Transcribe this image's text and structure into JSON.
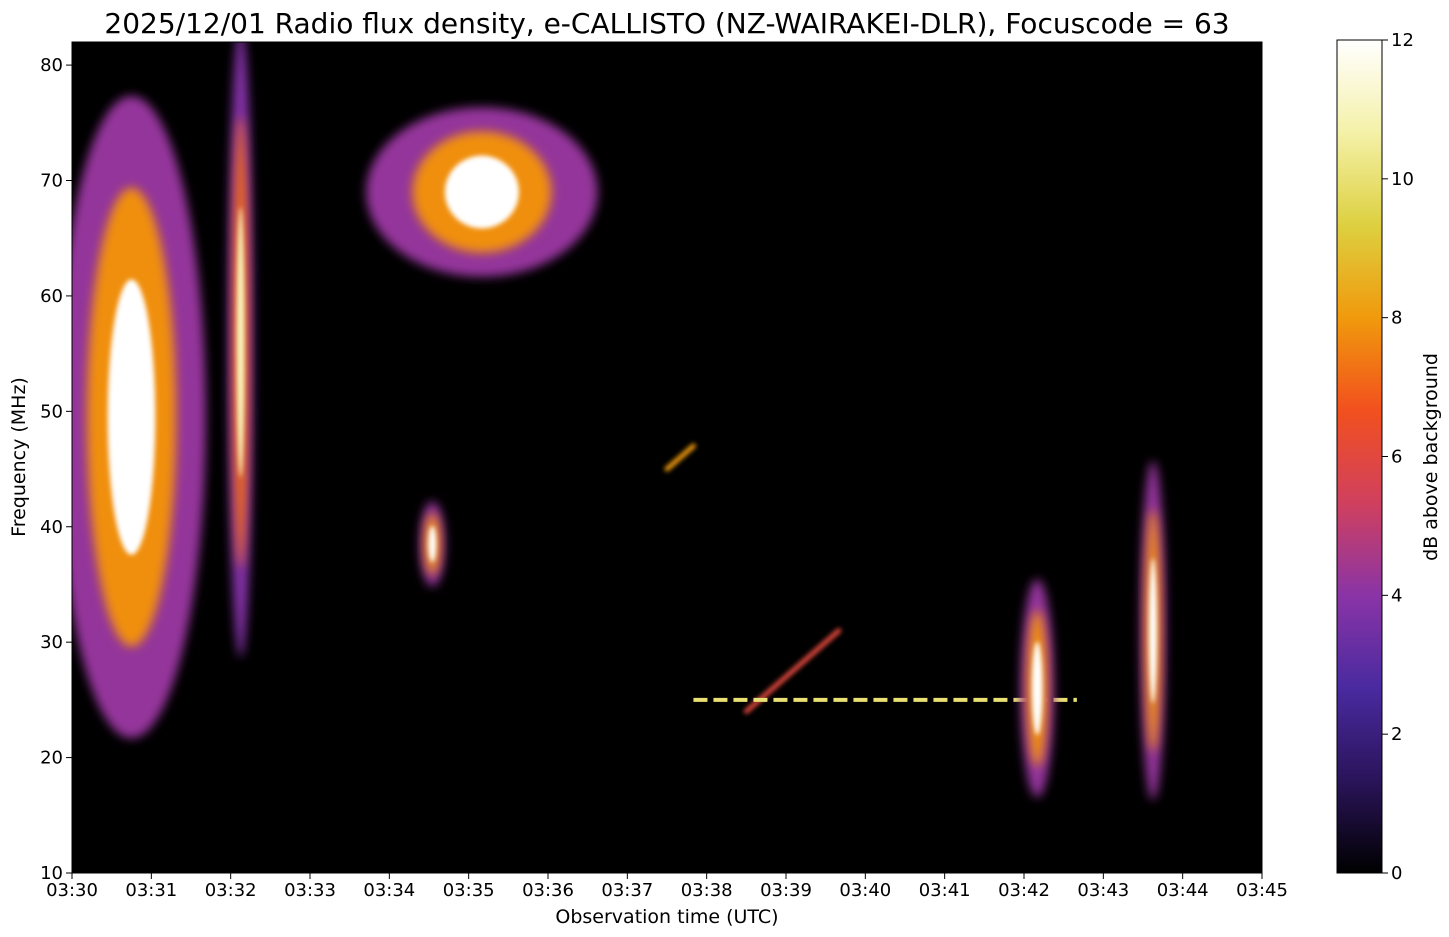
{
  "chart_data": {
    "type": "heatmap",
    "title": "2025/12/01 Radio flux density, e-CALLISTO (NZ-WAIRAKEI-DLR), Focuscode = 63",
    "xlabel": "Observation time (UTC)",
    "ylabel": "Frequency (MHz)",
    "x_ticks": [
      "03:30",
      "03:31",
      "03:32",
      "03:33",
      "03:34",
      "03:35",
      "03:36",
      "03:37",
      "03:38",
      "03:39",
      "03:40",
      "03:41",
      "03:42",
      "03:43",
      "03:44",
      "03:45"
    ],
    "x_range": [
      "03:30",
      "03:45"
    ],
    "y_ticks": [
      10,
      20,
      30,
      40,
      50,
      60,
      70,
      80
    ],
    "ylim": [
      10,
      82
    ],
    "colorbar": {
      "label": "dB above background",
      "ticks": [
        0,
        2,
        4,
        6,
        8,
        10,
        12
      ],
      "range": [
        0,
        12
      ],
      "colors": [
        "#000000",
        "#2a145a",
        "#4a2aa0",
        "#8a34a6",
        "#d0405e",
        "#f2501e",
        "#f09a0c",
        "#ddd040",
        "#f4f1a8",
        "#ffffff"
      ]
    },
    "features": [
      {
        "name": "broadband emission",
        "time": [
          "03:30",
          "03:31:30"
        ],
        "freq_mhz": [
          23,
          76
        ],
        "peak_db": 12
      },
      {
        "name": "burst",
        "time": [
          "03:32",
          "03:32:15"
        ],
        "freq_mhz": [
          30,
          82
        ],
        "peak_db": 11
      },
      {
        "name": "burst",
        "time": [
          "03:34",
          "03:36:20"
        ],
        "freq_mhz": [
          62,
          76
        ],
        "peak_db": 12
      },
      {
        "name": "burst",
        "time": [
          "03:34:25",
          "03:34:40"
        ],
        "freq_mhz": [
          35,
          42
        ],
        "peak_db": 12
      },
      {
        "name": "drifting feature",
        "time": [
          "03:37:30",
          "03:37:50"
        ],
        "freq_mhz": [
          45,
          47
        ],
        "peak_db": 8
      },
      {
        "name": "drifting feature",
        "time": [
          "03:38:30",
          "03:39:40"
        ],
        "freq_mhz": [
          24,
          31
        ],
        "peak_db": 6
      },
      {
        "name": "interference line",
        "time": [
          "03:37:50",
          "03:42:40"
        ],
        "freq_mhz": [
          25,
          25
        ],
        "peak_db": 10
      },
      {
        "name": "burst",
        "time": [
          "03:42",
          "03:42:20"
        ],
        "freq_mhz": [
          17,
          35
        ],
        "peak_db": 12
      },
      {
        "name": "burst",
        "time": [
          "03:43:30",
          "03:43:45"
        ],
        "freq_mhz": [
          17,
          45
        ],
        "peak_db": 12
      }
    ]
  }
}
